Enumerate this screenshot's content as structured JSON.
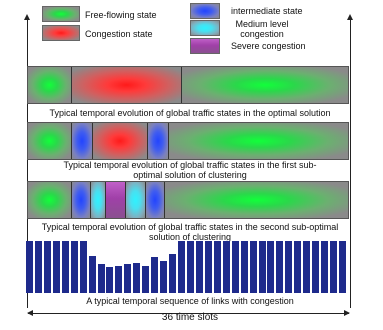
{
  "legend": [
    {
      "id": "free",
      "label": "Free-flowing state",
      "color": "#11ff3a"
    },
    {
      "id": "congestion",
      "label": "Congestion state",
      "color": "#ff1a1a"
    },
    {
      "id": "intermediate",
      "label": "intermediate state",
      "color": "#2244ff"
    },
    {
      "id": "medium",
      "label": "Medium level congestion",
      "color": "#2ef2ff"
    },
    {
      "id": "severe",
      "label": "Severe congestion",
      "color": "#a040a8"
    }
  ],
  "strips": [
    {
      "caption": "Typical temporal evolution of global traffic states in the optimal solution",
      "segments": [
        "free",
        "congestion",
        "free"
      ]
    },
    {
      "caption": "Typical temporal evolution of global traffic states in the first sub-optimal solution of clustering",
      "segments": [
        "free",
        "intermediate",
        "congestion",
        "intermediate",
        "free"
      ]
    },
    {
      "caption": "Typical temporal evolution of global traffic states in the second sub-optimal solution of clustering",
      "segments": [
        "free",
        "intermediate",
        "medium",
        "severe",
        "medium",
        "intermediate",
        "free"
      ]
    }
  ],
  "bar_chart": {
    "caption": "A typical temporal sequence of links with congestion",
    "x_span_label": "36 time slots",
    "num_slots": 36,
    "values": [
      1.0,
      1.0,
      1.0,
      1.0,
      1.0,
      1.0,
      1.0,
      0.72,
      0.55,
      0.5,
      0.52,
      0.55,
      0.58,
      0.52,
      0.7,
      0.62,
      0.75,
      1.0,
      1.0,
      1.0,
      1.0,
      1.0,
      1.0,
      1.0,
      1.0,
      1.0,
      1.0,
      1.0,
      1.0,
      1.0,
      1.0,
      1.0,
      1.0,
      1.0,
      1.0,
      1.0
    ],
    "bar_color": "#1e2a8c"
  }
}
